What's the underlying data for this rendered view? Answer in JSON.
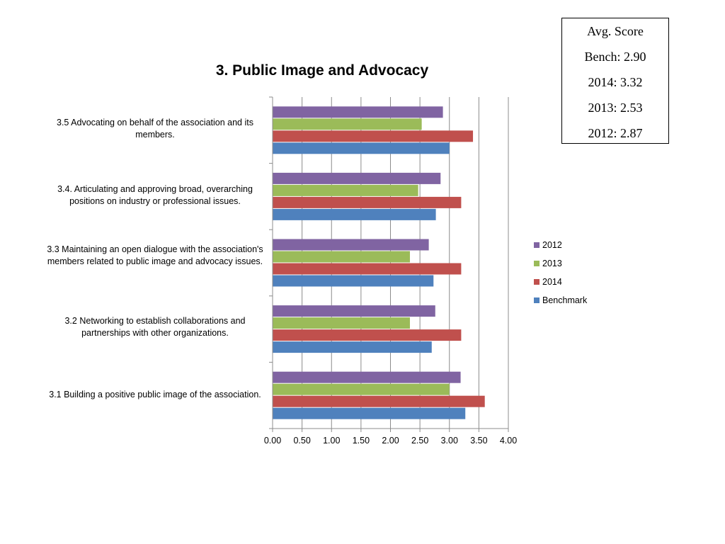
{
  "chart_data": {
    "type": "bar",
    "orientation": "horizontal",
    "title": "3. Public Image and Advocacy",
    "categories": [
      "3.1 Building a positive public image of the association.",
      "3.2 Networking to establish collaborations and partnerships with other organizations.",
      "3.3 Maintaining an open dialogue with the association's members related to public image and advocacy issues.",
      "3.4. Articulating and approving broad, overarching positions on industry or professional issues.",
      "3.5 Advocating on behalf of the association and its members."
    ],
    "series": [
      {
        "name": "Benchmark",
        "color": "#4F81BD",
        "values": [
          3.27,
          2.7,
          2.73,
          2.77,
          3.0
        ]
      },
      {
        "name": "2014",
        "color": "#C0504D",
        "values": [
          3.6,
          3.2,
          3.2,
          3.2,
          3.4
        ]
      },
      {
        "name": "2013",
        "color": "#9BBB59",
        "values": [
          3.0,
          2.33,
          2.33,
          2.47,
          2.53
        ]
      },
      {
        "name": "2012",
        "color": "#8064A2",
        "values": [
          3.19,
          2.76,
          2.65,
          2.85,
          2.89
        ]
      }
    ],
    "xlim": [
      0,
      4
    ],
    "xticks": [
      "0.00",
      "0.50",
      "1.00",
      "1.50",
      "2.00",
      "2.50",
      "3.00",
      "3.50",
      "4.00"
    ],
    "grid": true,
    "legend_position": "right",
    "legend_order": [
      "2012",
      "2013",
      "2014",
      "Benchmark"
    ]
  },
  "score_box": {
    "lines": [
      "Avg. Score",
      "Bench: 2.90",
      "2014: 3.32",
      "2013: 2.53",
      "2012: 2.87"
    ]
  }
}
